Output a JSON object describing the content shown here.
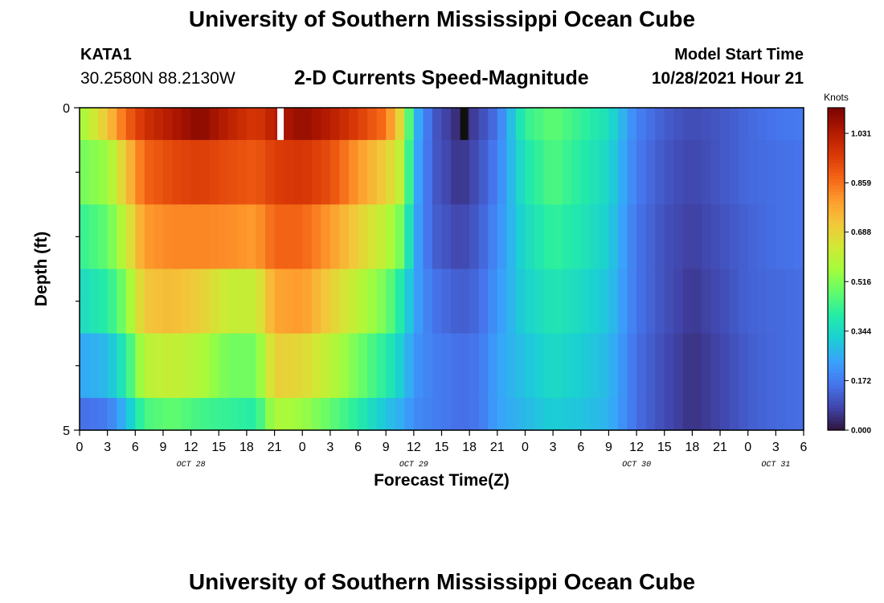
{
  "header": {
    "title": "University of Southern Mississippi Ocean Cube",
    "station_id": "KATA1",
    "coordinates": "30.2580N  88.2130W",
    "subtitle": "2-D Currents Speed-Magnitude",
    "model_start_label": "Model Start Time",
    "model_start_time": "10/28/2021 Hour 21"
  },
  "footer": {
    "next_title": "University of Southern Mississippi Ocean Cube"
  },
  "chart_data": {
    "type": "heatmap",
    "title": "2-D Currents Speed-Magnitude",
    "xlabel": "Forecast Time(Z)",
    "ylabel": "Depth (ft)",
    "x_hours": [
      0,
      78
    ],
    "x_tick_step_hours": 3,
    "x_tick_labels": [
      "0",
      "3",
      "6",
      "9",
      "12",
      "15",
      "18",
      "21",
      "0",
      "3",
      "6",
      "9",
      "12",
      "15",
      "18",
      "21",
      "0",
      "3",
      "6",
      "9",
      "12",
      "15",
      "18",
      "21",
      "0",
      "3",
      "6"
    ],
    "day_labels": [
      {
        "label": "OCT 28",
        "hour": 12
      },
      {
        "label": "OCT 29",
        "hour": 36
      },
      {
        "label": "OCT 30",
        "hour": 60
      },
      {
        "label": "OCT 31",
        "hour": 75
      }
    ],
    "y_range": [
      0,
      5
    ],
    "y_tick_labels": [
      {
        "value": 0,
        "label": "0"
      },
      {
        "value": 5,
        "label": "5"
      }
    ],
    "y_minor_ticks": [
      1,
      2,
      3,
      4
    ],
    "depth_layers": [
      0,
      1,
      2,
      3,
      4
    ],
    "speed_keyframes": [
      {
        "hour": 0,
        "values": [
          0.55,
          0.5,
          0.42,
          0.35,
          0.25,
          0.15
        ]
      },
      {
        "hour": 3,
        "values": [
          0.72,
          0.55,
          0.48,
          0.4,
          0.28,
          0.17
        ]
      },
      {
        "hour": 5,
        "values": [
          0.88,
          0.72,
          0.62,
          0.52,
          0.4,
          0.28
        ]
      },
      {
        "hour": 7,
        "values": [
          0.98,
          0.88,
          0.8,
          0.72,
          0.6,
          0.45
        ]
      },
      {
        "hour": 10,
        "values": [
          1.04,
          0.93,
          0.83,
          0.74,
          0.62,
          0.48
        ]
      },
      {
        "hour": 13,
        "values": [
          1.1,
          0.95,
          0.83,
          0.7,
          0.58,
          0.44
        ]
      },
      {
        "hour": 16,
        "values": [
          1.02,
          0.92,
          0.82,
          0.62,
          0.5,
          0.42
        ]
      },
      {
        "hour": 19,
        "values": [
          0.96,
          0.9,
          0.8,
          0.62,
          0.5,
          0.4
        ]
      },
      {
        "hour": 21,
        "values": [
          1.03,
          0.95,
          0.88,
          0.78,
          0.7,
          0.58
        ]
      },
      {
        "hour": 24,
        "values": [
          1.08,
          0.97,
          0.88,
          0.8,
          0.68,
          0.55
        ]
      },
      {
        "hour": 27,
        "values": [
          1.03,
          0.92,
          0.8,
          0.7,
          0.6,
          0.48
        ]
      },
      {
        "hour": 30,
        "values": [
          0.95,
          0.8,
          0.7,
          0.6,
          0.5,
          0.4
        ]
      },
      {
        "hour": 33,
        "values": [
          0.86,
          0.7,
          0.6,
          0.5,
          0.4,
          0.3
        ]
      },
      {
        "hour": 35,
        "values": [
          0.62,
          0.58,
          0.48,
          0.36,
          0.3,
          0.25
        ]
      },
      {
        "hour": 36,
        "values": [
          0.3,
          0.28,
          0.26,
          0.25,
          0.22,
          0.2
        ]
      },
      {
        "hour": 38,
        "values": [
          0.12,
          0.12,
          0.13,
          0.16,
          0.18,
          0.18
        ]
      },
      {
        "hour": 41,
        "values": [
          0.03,
          0.05,
          0.08,
          0.12,
          0.15,
          0.15
        ]
      },
      {
        "hour": 43,
        "values": [
          0.08,
          0.1,
          0.12,
          0.14,
          0.16,
          0.16
        ]
      },
      {
        "hour": 45,
        "values": [
          0.16,
          0.18,
          0.2,
          0.22,
          0.24,
          0.24
        ]
      },
      {
        "hour": 48,
        "values": [
          0.42,
          0.38,
          0.35,
          0.33,
          0.3,
          0.28
        ]
      },
      {
        "hour": 51,
        "values": [
          0.48,
          0.46,
          0.42,
          0.38,
          0.35,
          0.32
        ]
      },
      {
        "hour": 54,
        "values": [
          0.42,
          0.4,
          0.38,
          0.35,
          0.32,
          0.3
        ]
      },
      {
        "hour": 57,
        "values": [
          0.36,
          0.34,
          0.32,
          0.3,
          0.28,
          0.27
        ]
      },
      {
        "hour": 60,
        "values": [
          0.18,
          0.17,
          0.16,
          0.16,
          0.15,
          0.15
        ]
      },
      {
        "hour": 63,
        "values": [
          0.12,
          0.11,
          0.1,
          0.1,
          0.09,
          0.09
        ]
      },
      {
        "hour": 66,
        "values": [
          0.09,
          0.08,
          0.07,
          0.06,
          0.05,
          0.05
        ]
      },
      {
        "hour": 69,
        "values": [
          0.11,
          0.11,
          0.1,
          0.09,
          0.08,
          0.08
        ]
      },
      {
        "hour": 72,
        "values": [
          0.14,
          0.14,
          0.13,
          0.13,
          0.12,
          0.12
        ]
      },
      {
        "hour": 75,
        "values": [
          0.16,
          0.15,
          0.15,
          0.14,
          0.14,
          0.14
        ]
      },
      {
        "hour": 78,
        "values": [
          0.17,
          0.16,
          0.16,
          0.15,
          0.15,
          0.15
        ]
      }
    ],
    "colorbar": {
      "label": "Knots",
      "min": 0.0,
      "max": 1.12,
      "tick_values": [
        0.0,
        0.172,
        0.344,
        0.516,
        0.688,
        0.859,
        1.031
      ],
      "tick_labels": [
        "0.000",
        "0.172",
        "0.344",
        "0.516",
        "0.688",
        "0.859",
        "1.031"
      ]
    },
    "colormap": [
      "#30123b",
      "#4145ab",
      "#4675ed",
      "#39a2fc",
      "#1bcfd4",
      "#24eca6",
      "#61fc6c",
      "#a4fc3b",
      "#d1e834",
      "#f3c63a",
      "#fe9b2d",
      "#f36315",
      "#d93806",
      "#b11901",
      "#7a0402"
    ],
    "missing_color": "#ffffff"
  }
}
